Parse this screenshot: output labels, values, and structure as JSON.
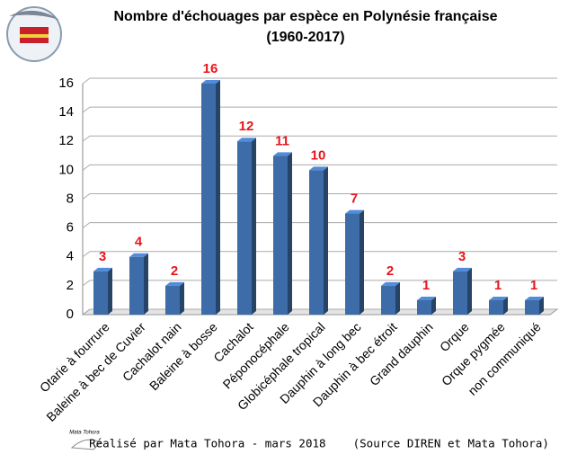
{
  "chart_data": {
    "type": "bar",
    "title": "Nombre d'échouages par espèce en Polynésie française",
    "subtitle": "(1960-2017)",
    "categories": [
      "Otarie à fourrure",
      "Baleine à bec de Cuvier",
      "Cachalot nain",
      "Baleine à bosse",
      "Cachalot",
      "Péponocéphale",
      "Globicéphale tropical",
      "Dauphin à long bec",
      "Dauphin à bec étroit",
      "Grand dauphin",
      "Orque",
      "Orque pygmée",
      "non communiqué"
    ],
    "values": [
      3,
      4,
      2,
      16,
      12,
      11,
      10,
      7,
      2,
      1,
      3,
      1,
      1
    ],
    "color": "#3e6ca8",
    "label_color": "#e8141c",
    "ylim": [
      0,
      16
    ],
    "yticks": [
      0,
      2,
      4,
      6,
      8,
      10,
      12,
      14,
      16
    ],
    "grid": true,
    "logo_label": "Mata Tohora",
    "footer": "Réalisé par Mata Tohora - mars 2018    (Source DIREN et Mata Tohora)"
  }
}
